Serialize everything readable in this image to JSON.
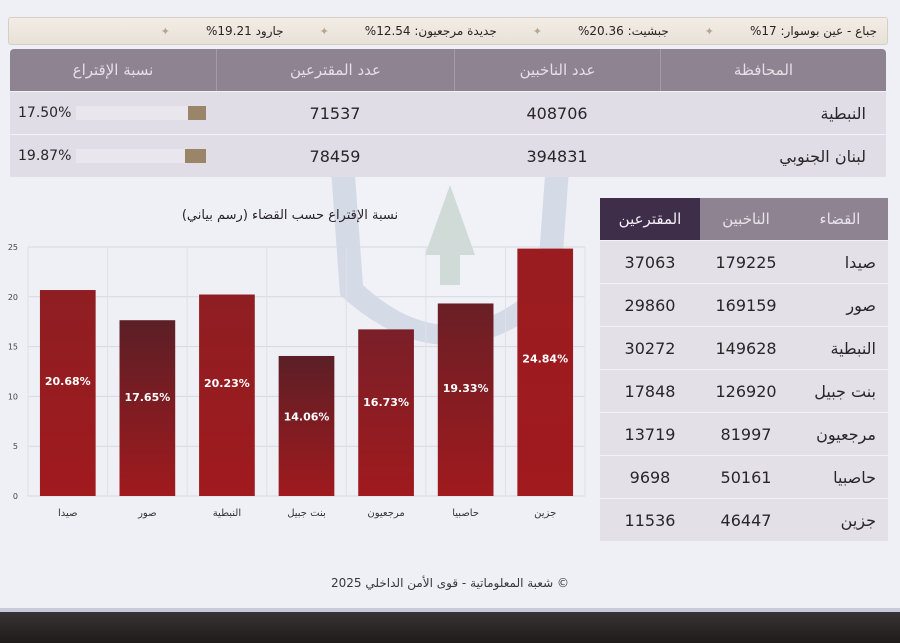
{
  "ticker": [
    {
      "label": "جباع - عين بوسوار",
      "value": "%17"
    },
    {
      "label": "جبشيت",
      "value": "%20.36"
    },
    {
      "label": "جديدة مرجعيون",
      "value": "%12.54"
    },
    {
      "label": "جارود",
      "value": "%19.21"
    }
  ],
  "governorates": {
    "headers": [
      "المحافظة",
      "عدد الناخبين",
      "عدد المقترعين",
      "نسبة الإقتراع"
    ],
    "rows": [
      {
        "name": "النبطية",
        "voters": "408706",
        "turnout_count": "71537",
        "pct": "17.50%",
        "pct_value": 17.5
      },
      {
        "name": "لبنان الجنوبي",
        "voters": "394831",
        "turnout_count": "78459",
        "pct": "19.87%",
        "pct_value": 19.87
      }
    ]
  },
  "districts": {
    "headers": [
      "القضاء",
      "الناخبين",
      "المقترعين"
    ],
    "rows": [
      {
        "name": "صيدا",
        "voters": "179225",
        "turnout": "37063"
      },
      {
        "name": "صور",
        "voters": "169159",
        "turnout": "29860"
      },
      {
        "name": "النبطية",
        "voters": "149628",
        "turnout": "30272"
      },
      {
        "name": "بنت جبيل",
        "voters": "126920",
        "turnout": "17848"
      },
      {
        "name": "مرجعيون",
        "voters": "81997",
        "turnout": "13719"
      },
      {
        "name": "حاصبيا",
        "voters": "50161",
        "turnout": "9698"
      },
      {
        "name": "جزين",
        "voters": "46447",
        "turnout": "11536"
      }
    ]
  },
  "chart_data": {
    "type": "bar",
    "title": "نسبة الإقتراع حسب القضاء (رسم بياني)",
    "categories": [
      "صيدا",
      "صور",
      "النبطية",
      "بنت جبيل",
      "مرجعيون",
      "حاصبيا",
      "جزين"
    ],
    "values": [
      20.68,
      17.65,
      20.23,
      14.06,
      16.73,
      19.33,
      24.84
    ],
    "labels": [
      "20.68%",
      "17.65%",
      "20.23%",
      "14.06%",
      "16.73%",
      "19.33%",
      "24.84%"
    ],
    "yticks": [
      0,
      5,
      10,
      15,
      20,
      25
    ],
    "ylim": [
      0,
      25
    ],
    "grid": true,
    "colors": [
      "#8e1e22",
      "#5b1f26",
      "#8e1e22",
      "#5b1f26",
      "#7a1f28",
      "#6a1f26",
      "#9a1c20"
    ]
  },
  "footer": "© شعبة المعلوماتية - قوى الأمن الداخلي 2025"
}
